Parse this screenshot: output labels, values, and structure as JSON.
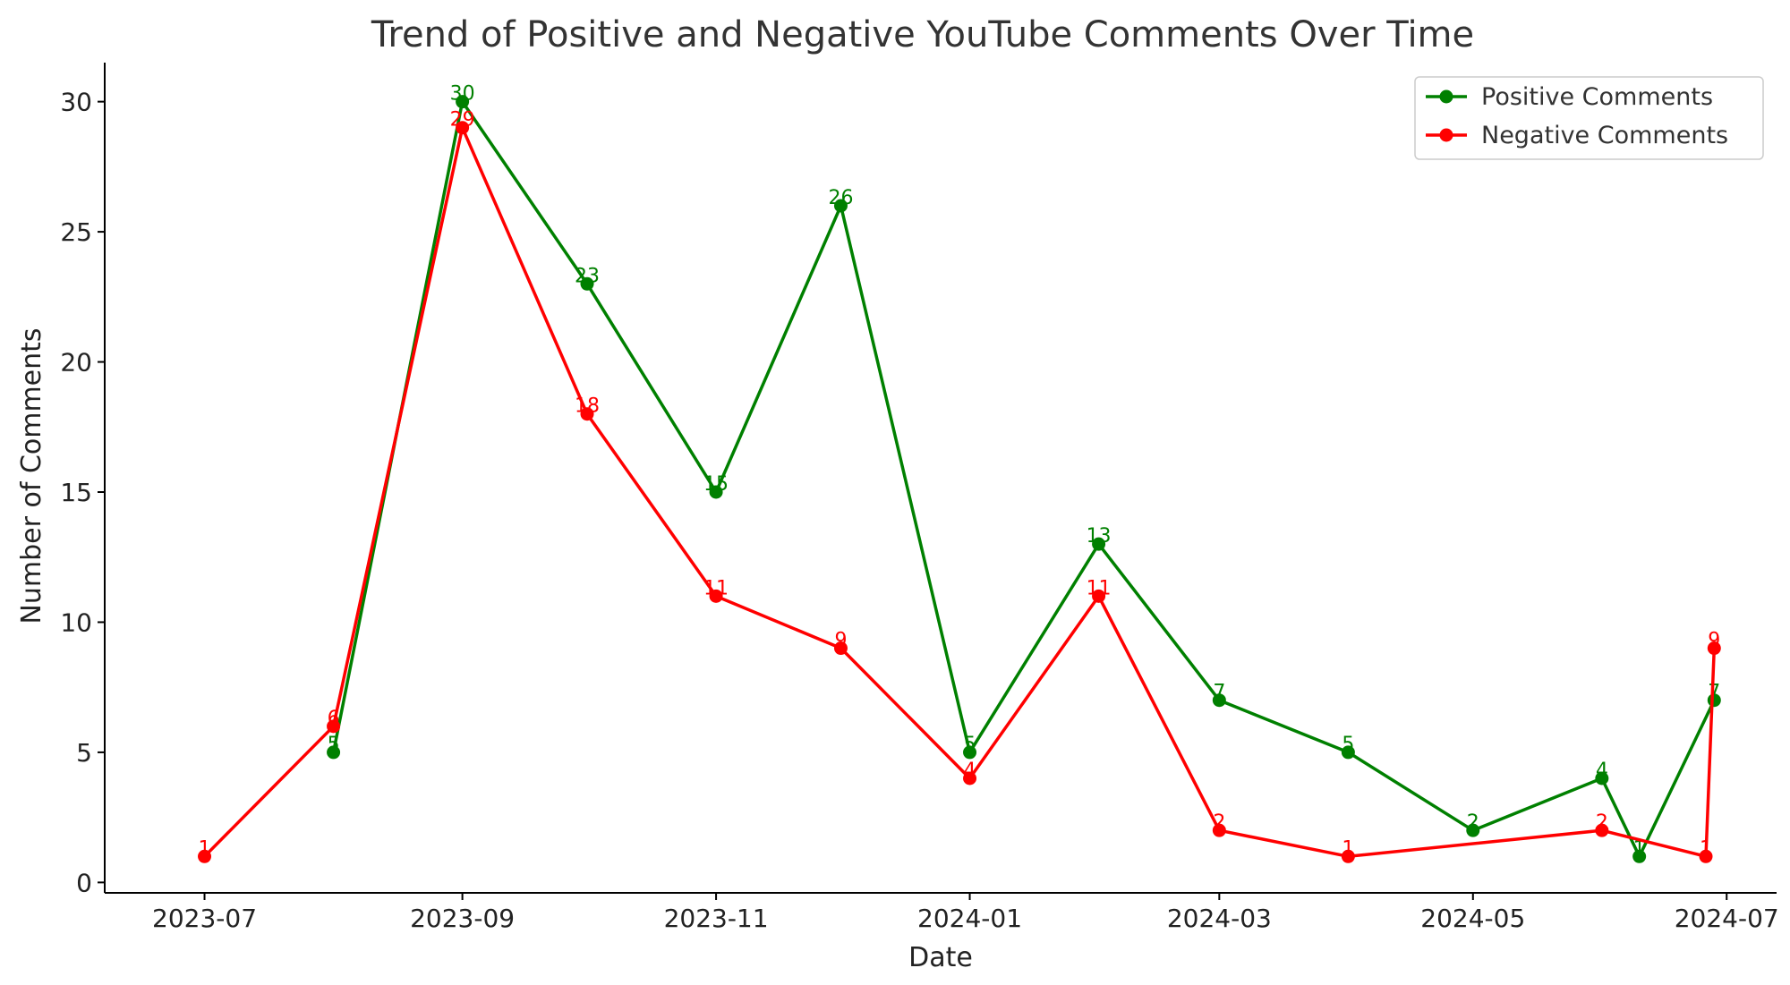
{
  "chart_data": {
    "type": "line",
    "title": "Trend of Positive and Negative YouTube Comments Over Time",
    "xlabel": "Date",
    "ylabel": "Number of Comments",
    "xlim": [
      "2023-06-07",
      "2024-07-13"
    ],
    "ylim": [
      -0.4,
      31.5
    ],
    "x_ticks": [
      "2023-07",
      "2023-09",
      "2023-11",
      "2024-01",
      "2024-03",
      "2024-05",
      "2024-07"
    ],
    "y_ticks": [
      "0",
      "5",
      "10",
      "15",
      "20",
      "25",
      "30"
    ],
    "grid": false,
    "legend_position": "top-right",
    "series": [
      {
        "name": "Positive Comments",
        "color": "#008000",
        "x": [
          "2023-08-01",
          "2023-09-01",
          "2023-10-01",
          "2023-11-01",
          "2023-12-01",
          "2024-01-01",
          "2024-02-01",
          "2024-03-01",
          "2024-04-01",
          "2024-05-01",
          "2024-06-01",
          "2024-06-10",
          "2024-06-28"
        ],
        "values": [
          5,
          30,
          23,
          15,
          26,
          5,
          13,
          7,
          5,
          2,
          4,
          1,
          7
        ],
        "labels": [
          "5",
          "30",
          "23",
          "15",
          "26",
          "5",
          "13",
          "7",
          "5",
          "2",
          "4",
          "1",
          "7"
        ]
      },
      {
        "name": "Negative Comments",
        "color": "#ff0000",
        "x": [
          "2023-07-01",
          "2023-08-01",
          "2023-09-01",
          "2023-10-01",
          "2023-11-01",
          "2023-12-01",
          "2024-01-01",
          "2024-02-01",
          "2024-03-01",
          "2024-04-01",
          "2024-06-01",
          "2024-06-26",
          "2024-06-28"
        ],
        "values": [
          1,
          6,
          29,
          18,
          11,
          9,
          4,
          11,
          2,
          1,
          2,
          1,
          9
        ],
        "labels": [
          "1",
          "6",
          "29",
          "18",
          "11",
          "9",
          "4",
          "11",
          "2",
          "1",
          "2",
          "1",
          "9"
        ]
      }
    ]
  }
}
